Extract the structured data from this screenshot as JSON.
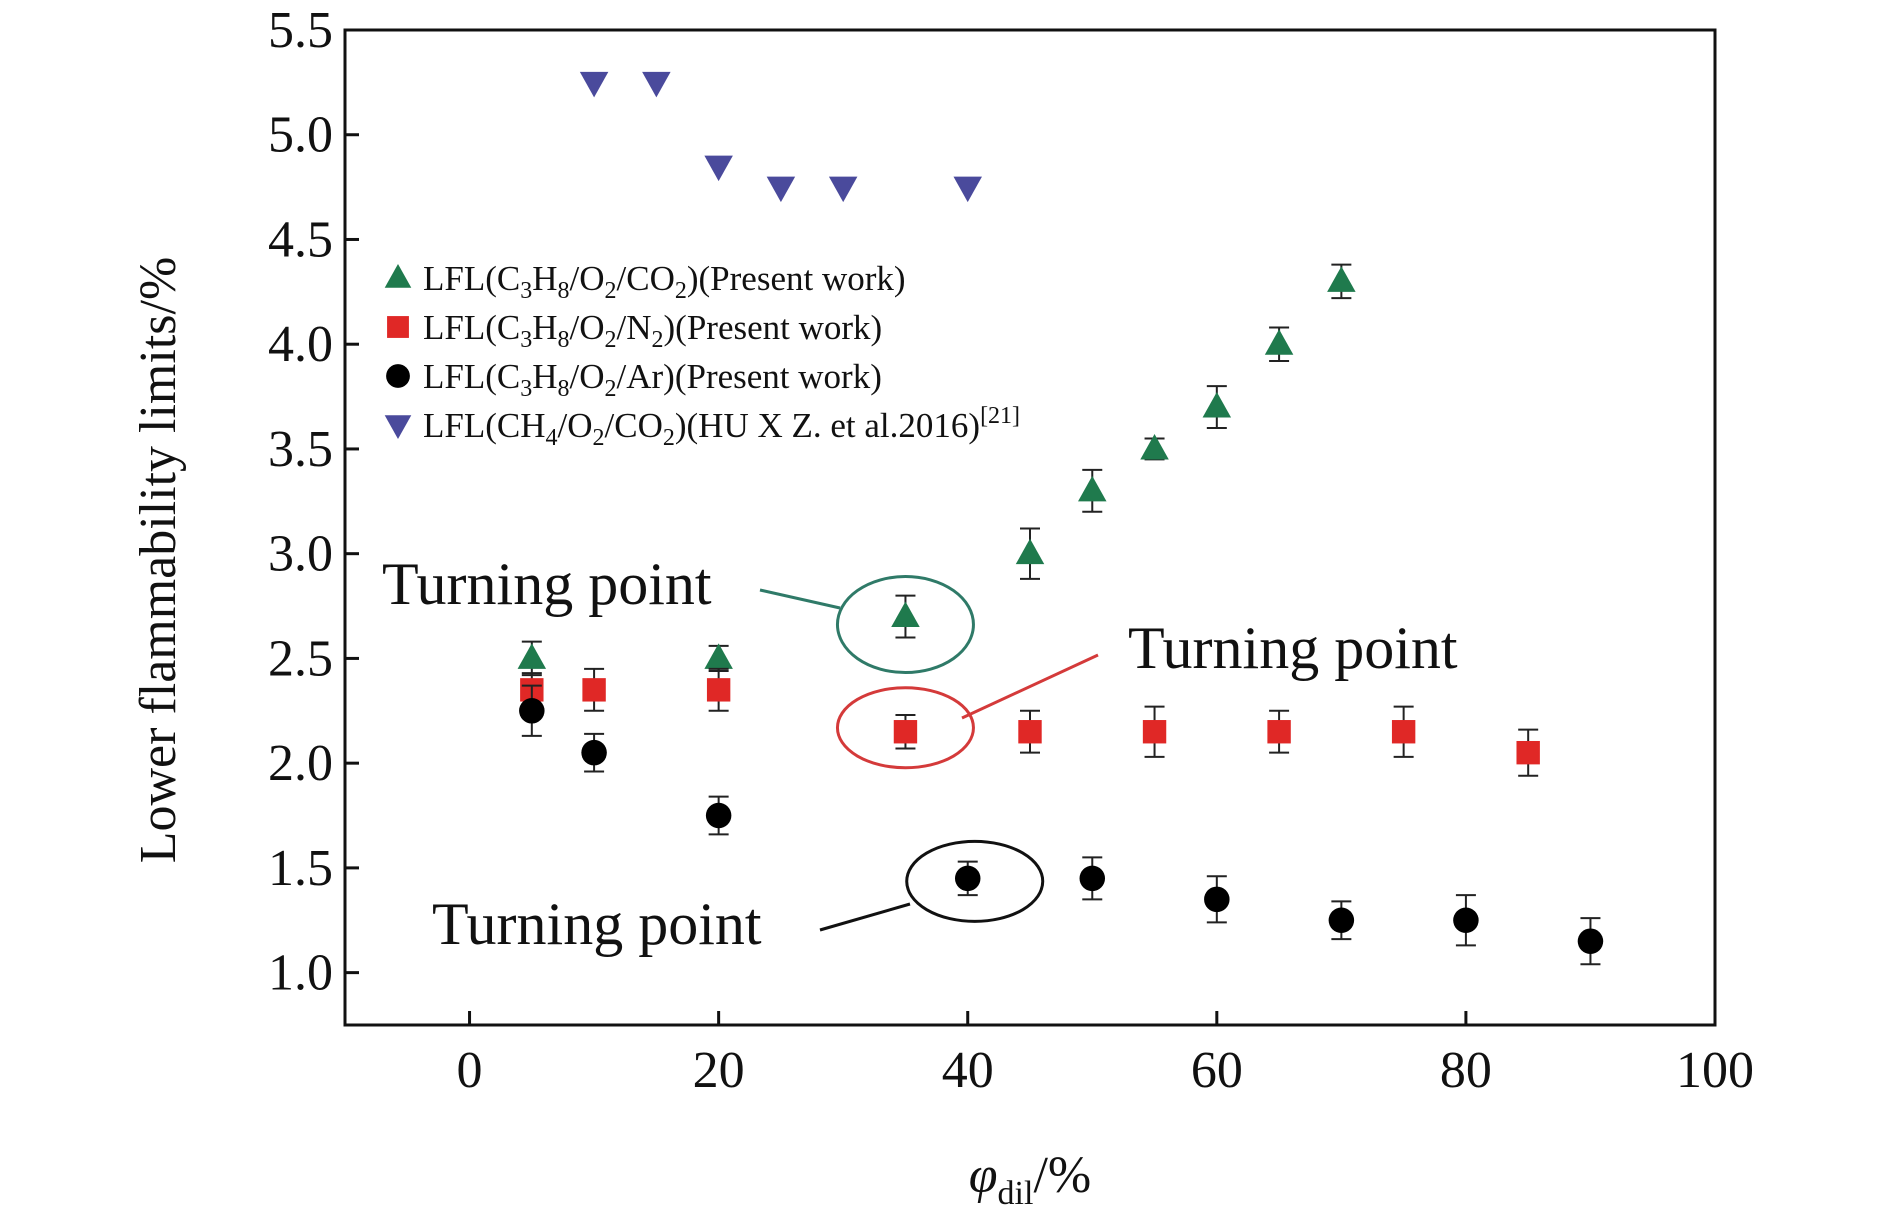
{
  "chart_data": {
    "type": "scatter",
    "title": "",
    "xlabel": {
      "symbol": "φ",
      "sub": "dil",
      "unit": "/%"
    },
    "ylabel": "Lower flammability limits/%",
    "xlim": [
      -10,
      100
    ],
    "ylim": [
      0.75,
      5.5
    ],
    "x_ticks": [
      0,
      20,
      40,
      60,
      80,
      100
    ],
    "y_ticks": [
      1.0,
      1.5,
      2.0,
      2.5,
      3.0,
      3.5,
      4.0,
      4.5,
      5.0,
      5.5
    ],
    "grid": false,
    "legend_position": "upper-left",
    "series": [
      {
        "key": "co2",
        "legend": [
          {
            "t": "LFL(C"
          },
          {
            "t": "3",
            "sub": true
          },
          {
            "t": "H"
          },
          {
            "t": "8",
            "sub": true
          },
          {
            "t": "/O"
          },
          {
            "t": "2",
            "sub": true
          },
          {
            "t": "/CO"
          },
          {
            "t": "2",
            "sub": true
          },
          {
            "t": ")(Present work)"
          }
        ],
        "marker": "triangle-up",
        "color": "#1f7a4d",
        "x": [
          5,
          20,
          35,
          45,
          50,
          55,
          60,
          65,
          70
        ],
        "y": [
          2.5,
          2.5,
          2.7,
          3.0,
          3.3,
          3.5,
          3.7,
          4.0,
          4.3
        ],
        "err": [
          0.08,
          0.06,
          0.1,
          0.12,
          0.1,
          0.05,
          0.1,
          0.08,
          0.08
        ]
      },
      {
        "key": "n2",
        "legend": [
          {
            "t": "LFL(C"
          },
          {
            "t": "3",
            "sub": true
          },
          {
            "t": "H"
          },
          {
            "t": "8",
            "sub": true
          },
          {
            "t": "/O"
          },
          {
            "t": "2",
            "sub": true
          },
          {
            "t": "/N"
          },
          {
            "t": "2",
            "sub": true
          },
          {
            "t": ")(Present work)"
          }
        ],
        "marker": "square",
        "color": "#e02826",
        "x": [
          5,
          10,
          20,
          35,
          45,
          55,
          65,
          75,
          85
        ],
        "y": [
          2.35,
          2.35,
          2.35,
          2.15,
          2.15,
          2.15,
          2.15,
          2.15,
          2.05
        ],
        "err": [
          0.08,
          0.1,
          0.1,
          0.08,
          0.1,
          0.12,
          0.1,
          0.12,
          0.11
        ]
      },
      {
        "key": "ar",
        "legend": [
          {
            "t": "LFL(C"
          },
          {
            "t": "3",
            "sub": true
          },
          {
            "t": "H"
          },
          {
            "t": "8",
            "sub": true
          },
          {
            "t": "/O"
          },
          {
            "t": "2",
            "sub": true
          },
          {
            "t": "/Ar)(Present work)"
          }
        ],
        "marker": "circle",
        "color": "#000000",
        "x": [
          5,
          10,
          20,
          40,
          50,
          60,
          70,
          80,
          90
        ],
        "y": [
          2.25,
          2.05,
          1.75,
          1.45,
          1.45,
          1.35,
          1.25,
          1.25,
          1.15
        ],
        "err": [
          0.12,
          0.09,
          0.09,
          0.08,
          0.1,
          0.11,
          0.09,
          0.12,
          0.11
        ]
      },
      {
        "key": "ch4",
        "legend": [
          {
            "t": "LFL(CH"
          },
          {
            "t": "4",
            "sub": true
          },
          {
            "t": "/O"
          },
          {
            "t": "2",
            "sub": true
          },
          {
            "t": "/CO"
          },
          {
            "t": "2",
            "sub": true
          },
          {
            "t": ")(HU X Z. et al.2016)"
          },
          {
            "t": "[21]",
            "sup": true
          }
        ],
        "marker": "triangle-down",
        "color": "#4a4a9c",
        "x": [
          10,
          15,
          20,
          25,
          30,
          40
        ],
        "y": [
          5.25,
          5.25,
          4.85,
          4.75,
          4.75,
          4.75
        ],
        "err": []
      }
    ],
    "annotations": [
      {
        "text": "Turning point",
        "series": "co2",
        "x": 35,
        "y": 2.7
      },
      {
        "text": "Turning point",
        "series": "n2",
        "x": 35,
        "y": 2.15
      },
      {
        "text": "Turning point",
        "series": "ar",
        "x": 40,
        "y": 1.45
      }
    ]
  }
}
